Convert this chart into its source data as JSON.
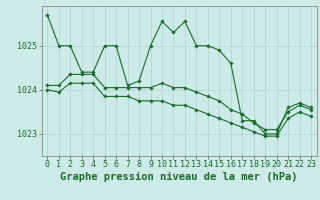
{
  "bg_color": "#cceae8",
  "grid_color": "#aad4d2",
  "line_color": "#1a6b2a",
  "title": "Graphe pression niveau de la mer (hPa)",
  "xlim": [
    -0.5,
    23.5
  ],
  "ylim": [
    1022.5,
    1025.9
  ],
  "yticks": [
    1023,
    1024,
    1025
  ],
  "xticks": [
    0,
    1,
    2,
    3,
    4,
    5,
    6,
    7,
    8,
    9,
    10,
    11,
    12,
    13,
    14,
    15,
    16,
    17,
    18,
    19,
    20,
    21,
    22,
    23
  ],
  "series": [
    [
      1025.7,
      1025.0,
      1025.0,
      1024.4,
      1024.4,
      1025.0,
      1025.0,
      1024.1,
      1024.2,
      1025.0,
      1025.55,
      1025.3,
      1025.55,
      1025.0,
      1025.0,
      1024.9,
      1024.6,
      1023.3,
      1023.3,
      1023.0,
      1023.0,
      1023.6,
      1023.7,
      1023.6
    ],
    [
      1024.1,
      1024.1,
      1024.35,
      1024.35,
      1024.35,
      1024.05,
      1024.05,
      1024.05,
      1024.05,
      1024.05,
      1024.15,
      1024.05,
      1024.05,
      1023.95,
      1023.85,
      1023.75,
      1023.55,
      1023.45,
      1023.25,
      1023.1,
      1023.1,
      1023.5,
      1023.65,
      1023.55
    ],
    [
      1024.0,
      1023.95,
      1024.15,
      1024.15,
      1024.15,
      1023.85,
      1023.85,
      1023.85,
      1023.75,
      1023.75,
      1023.75,
      1023.65,
      1023.65,
      1023.55,
      1023.45,
      1023.35,
      1023.25,
      1023.15,
      1023.05,
      1022.95,
      1022.95,
      1023.35,
      1023.5,
      1023.4
    ]
  ],
  "title_fontsize": 7.5,
  "tick_fontsize": 6,
  "title_color": "#1a6b2a",
  "tick_color": "#1a6b2a",
  "axis_color": "#888888",
  "spine_color": "#888888"
}
